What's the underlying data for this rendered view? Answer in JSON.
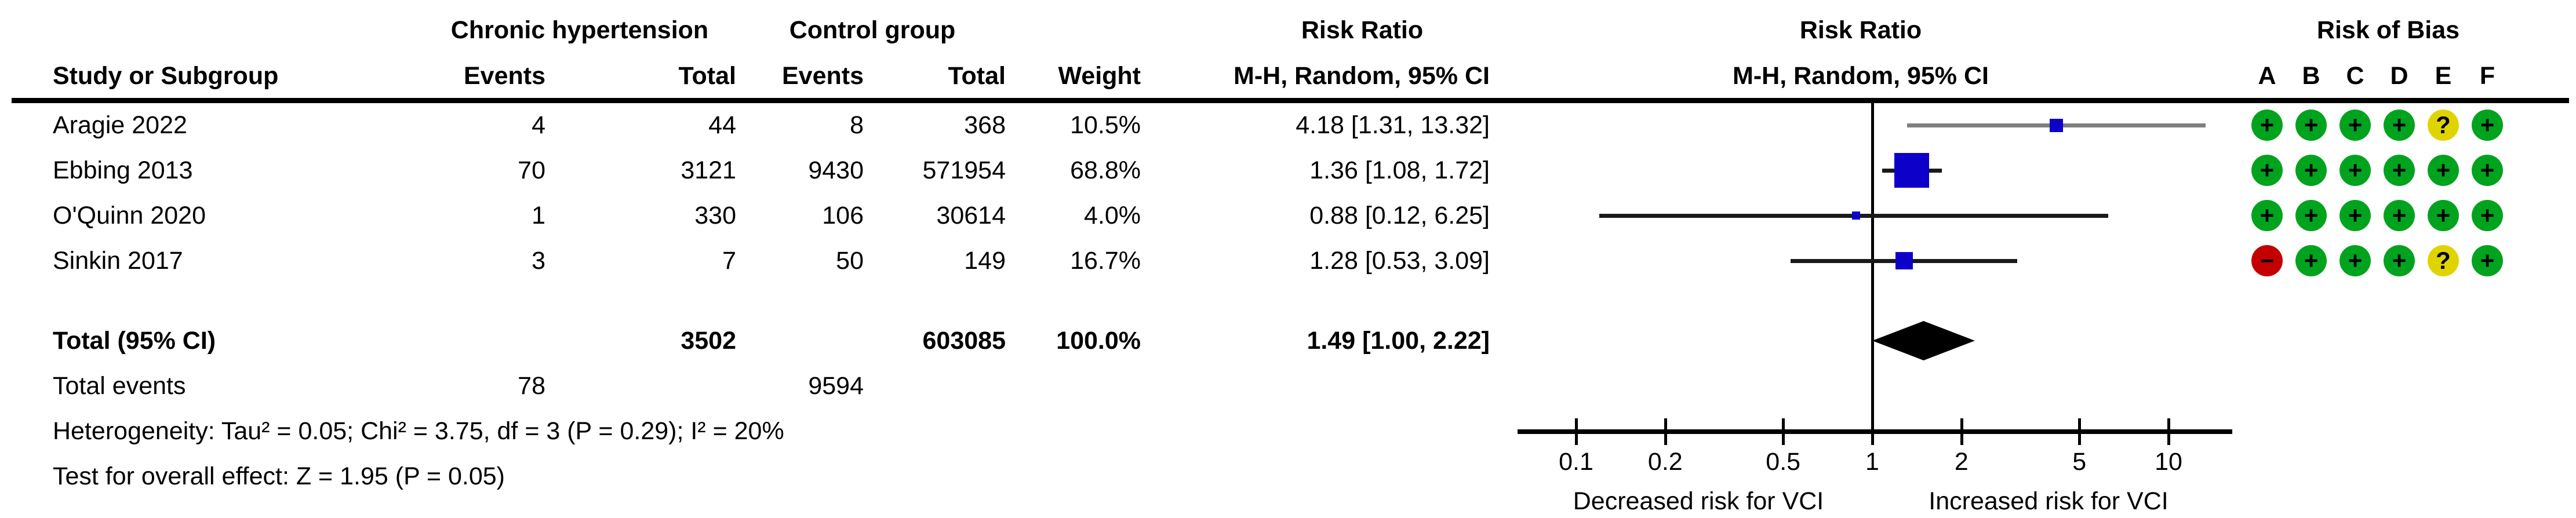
{
  "header": {
    "study": "Study or Subgroup",
    "group1": "Chronic hypertension",
    "group2": "Control group",
    "events_label": "Events",
    "total_label": "Total",
    "weight_label": "Weight",
    "risk_ratio": "Risk Ratio",
    "method": "M-H, Random, 95% CI",
    "risk_of_bias": "Risk of Bias",
    "rob_letters": [
      "A",
      "B",
      "C",
      "D",
      "E",
      "F"
    ]
  },
  "colors": {
    "effect_square": "#0d00c9",
    "ci_line": "#1a1a1a",
    "ci_line_gray": "#7f7f7f",
    "diamond": "#000000",
    "rob_low": "#00a31e",
    "rob_unclear": "#e0d400",
    "rob_high": "#c40000",
    "axis": "#000000"
  },
  "chart_data": {
    "type": "forest",
    "x_scale": "log",
    "effect_measure": "Risk Ratio",
    "ticks": [
      "0.1",
      "0.2",
      "0.5",
      "1",
      "2",
      "5",
      "10"
    ],
    "tick_values": [
      0.1,
      0.2,
      0.5,
      1,
      2,
      5,
      10
    ],
    "xlim": [
      0.06,
      16
    ],
    "axis_left_label": "Decreased risk for VCI",
    "axis_right_label": "Increased risk for VCI",
    "studies": [
      {
        "name": "Aragie 2022",
        "e1": "4",
        "t1": "44",
        "e2": "8",
        "t2": "368",
        "weight": "10.5%",
        "weight_pct": 10.5,
        "rr_label": "4.18 [1.31, 13.32]",
        "rr": 4.18,
        "lo": 1.31,
        "hi": 13.32,
        "rob": [
          "+",
          "+",
          "+",
          "+",
          "?",
          "+"
        ],
        "ci_gray": true
      },
      {
        "name": "Ebbing 2013",
        "e1": "70",
        "t1": "3121",
        "e2": "9430",
        "t2": "571954",
        "weight": "68.8%",
        "weight_pct": 68.8,
        "rr_label": "1.36 [1.08, 1.72]",
        "rr": 1.36,
        "lo": 1.08,
        "hi": 1.72,
        "rob": [
          "+",
          "+",
          "+",
          "+",
          "+",
          "+"
        ],
        "ci_gray": false
      },
      {
        "name": "O'Quinn 2020",
        "e1": "1",
        "t1": "330",
        "e2": "106",
        "t2": "30614",
        "weight": "4.0%",
        "weight_pct": 4.0,
        "rr_label": "0.88 [0.12, 6.25]",
        "rr": 0.88,
        "lo": 0.12,
        "hi": 6.25,
        "rob": [
          "+",
          "+",
          "+",
          "+",
          "+",
          "+"
        ],
        "ci_gray": false
      },
      {
        "name": "Sinkin 2017",
        "e1": "3",
        "t1": "7",
        "e2": "50",
        "t2": "149",
        "weight": "16.7%",
        "weight_pct": 16.7,
        "rr_label": "1.28 [0.53, 3.09]",
        "rr": 1.28,
        "lo": 0.53,
        "hi": 3.09,
        "rob": [
          "-",
          "+",
          "+",
          "+",
          "?",
          "+"
        ],
        "ci_gray": false
      }
    ],
    "total": {
      "label": "Total (95% CI)",
      "t1": "3502",
      "t2": "603085",
      "weight": "100.0%",
      "rr_label": "1.49 [1.00, 2.22]",
      "rr": 1.49,
      "lo": 1.0,
      "hi": 2.22
    },
    "total_events": {
      "label": "Total events",
      "v1": "78",
      "v2": "9594"
    },
    "footnotes": {
      "heterogeneity": "Heterogeneity: Tau² = 0.05; Chi² = 3.75, df = 3 (P = 0.29); I² = 20%",
      "overall": "Test for overall effect: Z = 1.95 (P = 0.05)"
    }
  }
}
